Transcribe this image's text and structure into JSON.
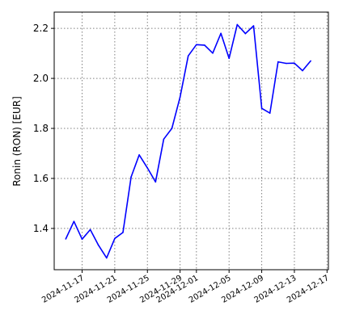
{
  "chart_data": {
    "type": "line",
    "title": "",
    "xlabel": "",
    "ylabel": "Ronin (RON) [EUR]",
    "grid": true,
    "x_ticks": [
      "2024-11-17",
      "2024-11-21",
      "2024-11-25",
      "2024-11-29",
      "2024-12-01",
      "2024-12-05",
      "2024-12-09",
      "2024-12-13",
      "2024-12-17"
    ],
    "y_ticks": [
      1.4,
      1.6,
      1.8,
      2.0,
      2.2
    ],
    "xlim": [
      "2024-11-13T14:00",
      "2024-12-17T04:00"
    ],
    "ylim": [
      1.235,
      2.265
    ],
    "line_color": "#0000ff",
    "grid_color": "#808080",
    "series": [
      {
        "x": [
          "2024-11-15",
          "2024-11-16",
          "2024-11-17",
          "2024-11-18",
          "2024-11-19",
          "2024-11-20",
          "2024-11-21",
          "2024-11-22",
          "2024-11-23",
          "2024-11-24",
          "2024-11-25",
          "2024-11-26",
          "2024-11-27",
          "2024-11-28",
          "2024-11-29",
          "2024-11-30",
          "2024-12-01",
          "2024-12-02",
          "2024-12-03",
          "2024-12-04",
          "2024-12-05",
          "2024-12-06",
          "2024-12-07",
          "2024-12-08",
          "2024-12-09",
          "2024-12-10",
          "2024-12-11",
          "2024-12-12",
          "2024-12-13",
          "2024-12-14",
          "2024-12-15"
        ],
        "values": [
          1.358,
          1.428,
          1.357,
          1.395,
          1.333,
          1.282,
          1.36,
          1.384,
          1.606,
          1.694,
          1.642,
          1.586,
          1.757,
          1.8,
          1.925,
          2.09,
          2.135,
          2.133,
          2.101,
          2.18,
          2.08,
          2.215,
          2.179,
          2.21,
          1.88,
          1.861,
          2.066,
          2.06,
          2.061,
          2.031,
          2.07
        ]
      }
    ]
  }
}
